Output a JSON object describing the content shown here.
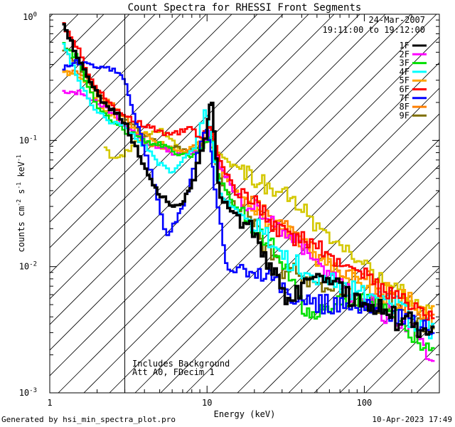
{
  "chart_data": {
    "type": "line",
    "title": "Count Spectra for RHESSI Front Segments",
    "xlabel": "Energy (keV)",
    "ylabel_parts": [
      "counts cm",
      "-2",
      " s",
      "-1",
      " keV",
      "-1"
    ],
    "x_scale": "log",
    "y_scale": "log",
    "xlim": [
      1,
      300
    ],
    "ylim": [
      0.001,
      1
    ],
    "x_ticks": [
      {
        "value": 1,
        "label": "1"
      },
      {
        "value": 10,
        "label": "10"
      },
      {
        "value": 100,
        "label": "100"
      }
    ],
    "y_ticks": [
      {
        "value": 1,
        "base": "10",
        "exp": "0"
      },
      {
        "value": 0.1,
        "base": "10",
        "exp": "-1"
      },
      {
        "value": 0.01,
        "base": "10",
        "exp": "-2"
      },
      {
        "value": 0.001,
        "base": "10",
        "exp": "-3"
      }
    ],
    "attenuator_region_keV": [
      1,
      3
    ],
    "date": "24-Mar-2007",
    "time_range": "19:11:00 to 19:12:00",
    "annotation_lines": [
      "Includes Background",
      "Att A0, FDecim 1"
    ],
    "series": [
      {
        "name": "1F",
        "color": "#000000",
        "points": [
          [
            1.2,
            0.9
          ],
          [
            1.4,
            0.55
          ],
          [
            1.7,
            0.33
          ],
          [
            2.2,
            0.2
          ],
          [
            3.0,
            0.14
          ],
          [
            4.0,
            0.06
          ],
          [
            5.0,
            0.038
          ],
          [
            6.0,
            0.03
          ],
          [
            7.0,
            0.032
          ],
          [
            8.0,
            0.045
          ],
          [
            9.0,
            0.07
          ],
          [
            10.0,
            0.12
          ],
          [
            10.6,
            0.24
          ],
          [
            11.3,
            0.09
          ],
          [
            12.0,
            0.035
          ],
          [
            14.0,
            0.03
          ],
          [
            17.0,
            0.022
          ],
          [
            22.0,
            0.015
          ],
          [
            30.0,
            0.007
          ],
          [
            35.0,
            0.005
          ],
          [
            45.0,
            0.009
          ],
          [
            60.0,
            0.008
          ],
          [
            80.0,
            0.006
          ],
          [
            110.0,
            0.005
          ],
          [
            150.0,
            0.004
          ],
          [
            200.0,
            0.0035
          ],
          [
            280.0,
            0.003
          ]
        ]
      },
      {
        "name": "2F",
        "color": "#ff00ff",
        "points": [
          [
            1.2,
            0.24
          ],
          [
            1.5,
            0.24
          ],
          [
            1.8,
            0.22
          ],
          [
            2.2,
            0.19
          ],
          [
            3.0,
            0.13
          ],
          [
            4.0,
            0.1
          ],
          [
            5.5,
            0.085
          ],
          [
            7.0,
            0.075
          ],
          [
            8.5,
            0.08
          ],
          [
            10.0,
            0.1
          ],
          [
            10.6,
            0.13
          ],
          [
            12.0,
            0.065
          ],
          [
            15.0,
            0.04
          ],
          [
            20.0,
            0.028
          ],
          [
            30.0,
            0.018
          ],
          [
            40.0,
            0.014
          ],
          [
            60.0,
            0.009
          ],
          [
            80.0,
            0.006
          ],
          [
            110.0,
            0.005
          ],
          [
            150.0,
            0.004
          ],
          [
            200.0,
            0.003
          ],
          [
            280.0,
            0.0017
          ]
        ]
      },
      {
        "name": "3F",
        "color": "#00e000",
        "points": [
          [
            1.2,
            0.58
          ],
          [
            1.5,
            0.45
          ],
          [
            1.8,
            0.25
          ],
          [
            2.2,
            0.16
          ],
          [
            3.0,
            0.12
          ],
          [
            4.0,
            0.1
          ],
          [
            5.5,
            0.09
          ],
          [
            7.0,
            0.075
          ],
          [
            8.5,
            0.075
          ],
          [
            10.0,
            0.095
          ],
          [
            10.6,
            0.11
          ],
          [
            12.0,
            0.05
          ],
          [
            15.0,
            0.03
          ],
          [
            20.0,
            0.02
          ],
          [
            30.0,
            0.012
          ],
          [
            40.0,
            0.005
          ],
          [
            50.0,
            0.0045
          ],
          [
            70.0,
            0.005
          ],
          [
            100.0,
            0.005
          ],
          [
            150.0,
            0.0045
          ],
          [
            200.0,
            0.003
          ],
          [
            280.0,
            0.0022
          ]
        ]
      },
      {
        "name": "4F",
        "color": "#00ffff",
        "points": [
          [
            1.2,
            0.62
          ],
          [
            1.5,
            0.32
          ],
          [
            1.8,
            0.2
          ],
          [
            2.2,
            0.15
          ],
          [
            3.0,
            0.13
          ],
          [
            4.0,
            0.09
          ],
          [
            5.0,
            0.065
          ],
          [
            6.0,
            0.055
          ],
          [
            7.0,
            0.07
          ],
          [
            8.5,
            0.09
          ],
          [
            9.5,
            0.17
          ],
          [
            10.2,
            0.15
          ],
          [
            11.0,
            0.08
          ],
          [
            12.0,
            0.04
          ],
          [
            15.0,
            0.028
          ],
          [
            20.0,
            0.022
          ],
          [
            30.0,
            0.012
          ],
          [
            45.0,
            0.009
          ],
          [
            70.0,
            0.007
          ],
          [
            100.0,
            0.006
          ],
          [
            150.0,
            0.005
          ],
          [
            200.0,
            0.004
          ],
          [
            280.0,
            0.003
          ]
        ]
      },
      {
        "name": "5F",
        "color": "#ffa500",
        "points": [
          [
            1.2,
            0.35
          ],
          [
            1.5,
            0.33
          ],
          [
            1.8,
            0.26
          ],
          [
            2.2,
            0.18
          ],
          [
            3.0,
            0.14
          ],
          [
            4.0,
            0.11
          ],
          [
            5.5,
            0.09
          ],
          [
            7.0,
            0.08
          ],
          [
            8.5,
            0.09
          ],
          [
            10.0,
            0.11
          ],
          [
            10.6,
            0.12
          ],
          [
            12.0,
            0.06
          ],
          [
            15.0,
            0.04
          ],
          [
            20.0,
            0.03
          ],
          [
            30.0,
            0.02
          ],
          [
            45.0,
            0.013
          ],
          [
            70.0,
            0.009
          ],
          [
            100.0,
            0.007
          ],
          [
            150.0,
            0.006
          ],
          [
            200.0,
            0.005
          ],
          [
            280.0,
            0.004
          ]
        ]
      },
      {
        "name": "6F",
        "color": "#ff0000",
        "points": [
          [
            1.2,
            0.85
          ],
          [
            1.5,
            0.55
          ],
          [
            1.8,
            0.3
          ],
          [
            2.2,
            0.22
          ],
          [
            3.0,
            0.16
          ],
          [
            4.0,
            0.13
          ],
          [
            5.0,
            0.12
          ],
          [
            6.0,
            0.11
          ],
          [
            7.0,
            0.12
          ],
          [
            8.0,
            0.13
          ],
          [
            9.0,
            0.1
          ],
          [
            10.0,
            0.12
          ],
          [
            10.6,
            0.13
          ],
          [
            12.0,
            0.07
          ],
          [
            15.0,
            0.04
          ],
          [
            20.0,
            0.03
          ],
          [
            30.0,
            0.02
          ],
          [
            45.0,
            0.015
          ],
          [
            70.0,
            0.011
          ],
          [
            100.0,
            0.008
          ],
          [
            150.0,
            0.006
          ],
          [
            200.0,
            0.005
          ],
          [
            280.0,
            0.004
          ]
        ]
      },
      {
        "name": "7F",
        "color": "#0000ff",
        "points": [
          [
            1.2,
            0.37
          ],
          [
            1.5,
            0.42
          ],
          [
            1.8,
            0.4
          ],
          [
            2.2,
            0.38
          ],
          [
            2.6,
            0.35
          ],
          [
            3.0,
            0.3
          ],
          [
            3.5,
            0.15
          ],
          [
            4.0,
            0.09
          ],
          [
            4.5,
            0.05
          ],
          [
            5.0,
            0.03
          ],
          [
            5.5,
            0.017
          ],
          [
            6.0,
            0.02
          ],
          [
            6.5,
            0.025
          ],
          [
            7.0,
            0.03
          ],
          [
            8.0,
            0.05
          ],
          [
            9.0,
            0.09
          ],
          [
            9.8,
            0.13
          ],
          [
            10.5,
            0.1
          ],
          [
            11.0,
            0.05
          ],
          [
            12.0,
            0.025
          ],
          [
            13.0,
            0.012
          ],
          [
            14.0,
            0.009
          ],
          [
            17.0,
            0.01
          ],
          [
            22.0,
            0.009
          ],
          [
            30.0,
            0.007
          ],
          [
            45.0,
            0.005
          ],
          [
            70.0,
            0.005
          ],
          [
            100.0,
            0.005
          ],
          [
            150.0,
            0.004
          ],
          [
            200.0,
            0.0035
          ],
          [
            280.0,
            0.003
          ]
        ]
      },
      {
        "name": "8F",
        "color": "#ff7f00",
        "points": [
          [
            1.2,
            0.35
          ],
          [
            1.5,
            0.35
          ],
          [
            1.8,
            0.3
          ],
          [
            2.2,
            0.22
          ],
          [
            3.0,
            0.15
          ],
          [
            4.0,
            0.1
          ],
          [
            5.5,
            0.085
          ],
          [
            7.0,
            0.08
          ],
          [
            8.5,
            0.09
          ],
          [
            10.0,
            0.11
          ],
          [
            10.6,
            0.12
          ],
          [
            12.0,
            0.06
          ],
          [
            15.0,
            0.04
          ],
          [
            20.0,
            0.03
          ],
          [
            30.0,
            0.02
          ],
          [
            45.0,
            0.013
          ],
          [
            70.0,
            0.01
          ],
          [
            100.0,
            0.008
          ],
          [
            150.0,
            0.006
          ],
          [
            200.0,
            0.005
          ],
          [
            280.0,
            0.004
          ]
        ]
      },
      {
        "name": "9F",
        "color": "#807000",
        "points": [
          [
            1.2,
            0.55
          ],
          [
            1.5,
            0.4
          ],
          [
            1.8,
            0.3
          ],
          [
            2.2,
            0.2
          ],
          [
            3.0,
            0.15
          ],
          [
            4.0,
            0.11
          ],
          [
            5.5,
            0.09
          ],
          [
            7.0,
            0.085
          ],
          [
            8.5,
            0.085
          ],
          [
            10.0,
            0.1
          ],
          [
            10.6,
            0.11
          ],
          [
            12.0,
            0.05
          ],
          [
            15.0,
            0.03
          ],
          [
            20.0,
            0.02
          ],
          [
            30.0,
            0.01
          ],
          [
            45.0,
            0.008
          ],
          [
            70.0,
            0.006
          ],
          [
            100.0,
            0.005
          ],
          [
            150.0,
            0.005
          ],
          [
            200.0,
            0.004
          ],
          [
            280.0,
            0.003
          ]
        ]
      },
      {
        "name": "background",
        "color": "#d4c800",
        "legend": false,
        "points": [
          [
            2.2,
            0.09
          ],
          [
            2.6,
            0.07
          ],
          [
            3.0,
            0.08
          ],
          [
            4.0,
            0.11
          ],
          [
            5.0,
            0.12
          ],
          [
            6.0,
            0.1
          ],
          [
            7.0,
            0.08
          ],
          [
            8.5,
            0.085
          ],
          [
            10.0,
            0.1
          ],
          [
            11.0,
            0.08
          ],
          [
            12.0,
            0.08
          ],
          [
            14.0,
            0.065
          ],
          [
            16.0,
            0.06
          ],
          [
            20.0,
            0.05
          ],
          [
            25.0,
            0.045
          ],
          [
            30.0,
            0.04
          ],
          [
            35.0,
            0.035
          ],
          [
            45.0,
            0.025
          ],
          [
            60.0,
            0.018
          ],
          [
            80.0,
            0.012
          ],
          [
            100.0,
            0.01
          ],
          [
            130.0,
            0.008
          ],
          [
            170.0,
            0.006
          ],
          [
            220.0,
            0.005
          ],
          [
            280.0,
            0.004
          ]
        ]
      }
    ]
  },
  "footer": {
    "left": "Generated by hsi_min_spectra_plot.pro",
    "right": "10-Apr-2023 17:49"
  }
}
